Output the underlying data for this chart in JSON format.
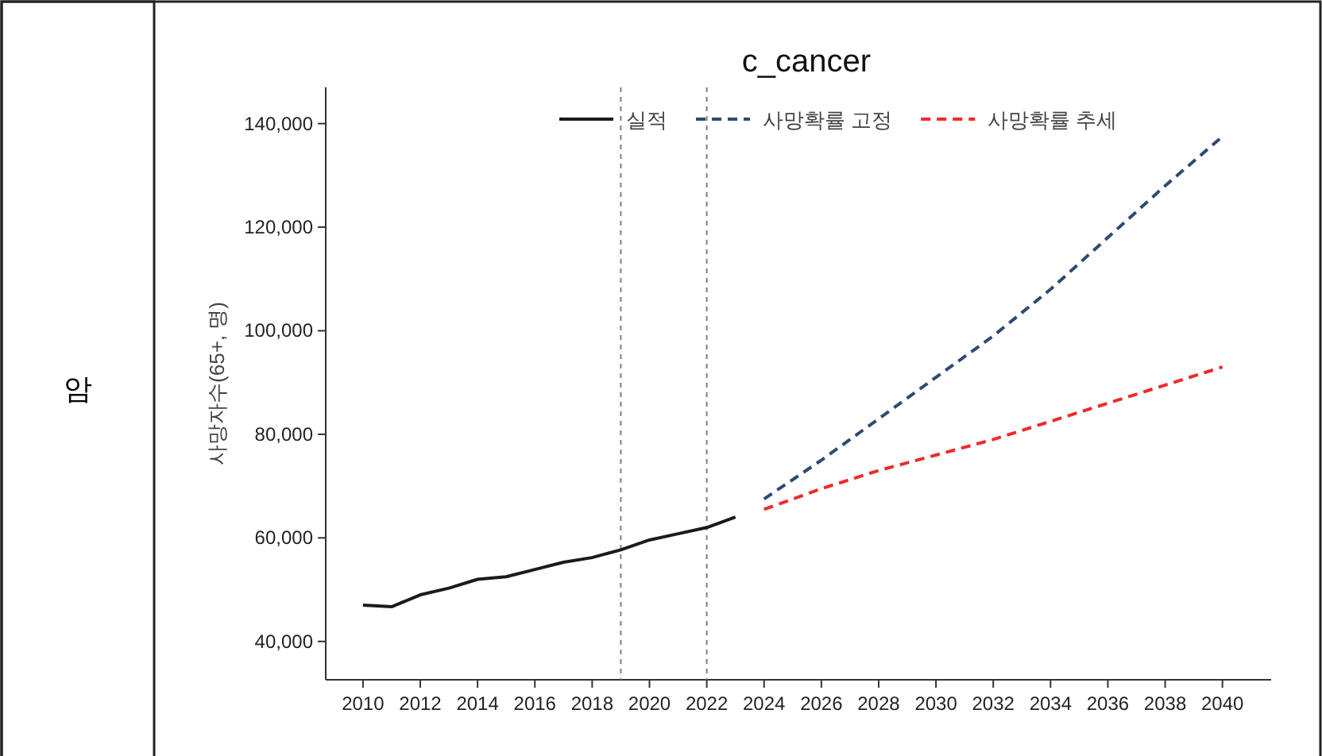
{
  "chart_data": {
    "type": "line",
    "title": "c_cancer",
    "ylabel": "사망자수(65+, 명)",
    "annotations": [
      "암"
    ],
    "xlim": [
      2008.7,
      2041.7
    ],
    "xticks": [
      2010,
      2012,
      2014,
      2016,
      2018,
      2020,
      2022,
      2024,
      2026,
      2028,
      2030,
      2032,
      2034,
      2036,
      2038,
      2040
    ],
    "ylim": [
      32600,
      147000
    ],
    "yticks": [
      {
        "value": 40000,
        "label": "40,000"
      },
      {
        "value": 60000,
        "label": "60,000"
      },
      {
        "value": 80000,
        "label": "80,000"
      },
      {
        "value": 100000,
        "label": "100,000"
      },
      {
        "value": 120000,
        "label": "120,000"
      },
      {
        "value": 140000,
        "label": "140,000"
      }
    ],
    "legend": "top",
    "series": [
      {
        "name": "실적",
        "color": "#1a1a1a",
        "line_style": "solid",
        "x": [
          2010,
          2011,
          2012,
          2013,
          2014,
          2015,
          2016,
          2017,
          2018,
          2019,
          2020,
          2021,
          2022,
          2023
        ],
        "values": [
          47000,
          46700,
          49000,
          50300,
          52000,
          52500,
          53900,
          55300,
          56200,
          57700,
          59600,
          60800,
          62000,
          64000
        ]
      },
      {
        "name": "사망확률 고정",
        "color": "#2e4a72",
        "line_style": "dashed",
        "x": [
          2024,
          2026,
          2028,
          2030,
          2032,
          2034,
          2036,
          2038,
          2040
        ],
        "values": [
          67500,
          75000,
          83000,
          91000,
          99000,
          108000,
          118000,
          128000,
          137500
        ]
      },
      {
        "name": "사망확률 추세",
        "color": "#ee2a2a",
        "line_style": "dashed",
        "x": [
          2024,
          2026,
          2028,
          2030,
          2032,
          2034,
          2036,
          2038,
          2040
        ],
        "values": [
          65500,
          69500,
          73000,
          76000,
          79000,
          82500,
          86000,
          89500,
          93000
        ]
      }
    ],
    "ref_lines": [
      {
        "axis": "x",
        "value": 2019,
        "color": "#808080",
        "line_style": "dashed"
      },
      {
        "axis": "x",
        "value": 2022,
        "color": "#808080",
        "line_style": "dashed"
      }
    ]
  }
}
